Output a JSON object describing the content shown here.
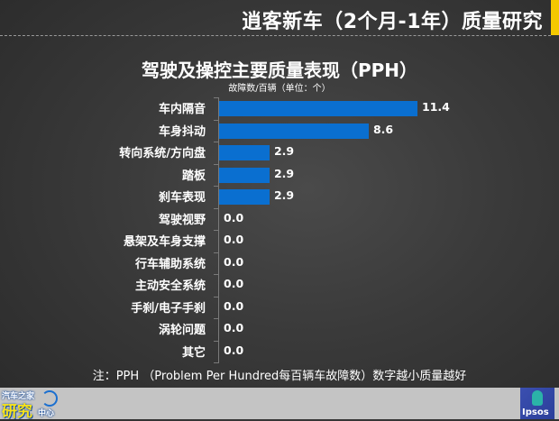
{
  "header": {
    "title": "逍客新车（2个月-1年）质量研究",
    "accent_color": "#f5c800"
  },
  "chart": {
    "title": "驾驶及操控主要质量表现（PPH）",
    "subtitle": "故障数/百辆（单位：个）",
    "bar_color": "#0a6fd0",
    "rows": [
      {
        "label": "车内隔音",
        "value": "11.4"
      },
      {
        "label": "车身抖动",
        "value": "8.6"
      },
      {
        "label": "转向系统/方向盘",
        "value": "2.9"
      },
      {
        "label": "踏板",
        "value": "2.9"
      },
      {
        "label": "刹车表现",
        "value": "2.9"
      },
      {
        "label": "驾驶视野",
        "value": "0.0"
      },
      {
        "label": "悬架及车身支撑",
        "value": "0.0"
      },
      {
        "label": "行车辅助系统",
        "value": "0.0"
      },
      {
        "label": "主动安全系统",
        "value": "0.0"
      },
      {
        "label": "手刹/电子手刹",
        "value": "0.0"
      },
      {
        "label": "涡轮问题",
        "value": "0.0"
      },
      {
        "label": "其它",
        "value": "0.0"
      }
    ]
  },
  "note": "注：PPH （Problem Per Hundred每百辆车故障数）数字越小质量越好",
  "footer": {
    "left_logo": {
      "line1": "汽车之家",
      "line2": "研究",
      "line3": "中心"
    },
    "right_logo": {
      "text": "Ipsos"
    }
  },
  "chart_data": {
    "type": "bar",
    "orientation": "horizontal",
    "title": "驾驶及操控主要质量表现（PPH）",
    "subtitle": "故障数/百辆（单位：个）",
    "categories": [
      "车内隔音",
      "车身抖动",
      "转向系统/方向盘",
      "踏板",
      "刹车表现",
      "驾驶视野",
      "悬架及车身支撑",
      "行车辅助系统",
      "主动安全系统",
      "手刹/电子手刹",
      "涡轮问题",
      "其它"
    ],
    "values": [
      11.4,
      8.6,
      2.9,
      2.9,
      2.9,
      0.0,
      0.0,
      0.0,
      0.0,
      0.0,
      0.0,
      0.0
    ],
    "xlabel": "",
    "ylabel": "",
    "data_labels": true,
    "grid": false,
    "legend": "none"
  }
}
